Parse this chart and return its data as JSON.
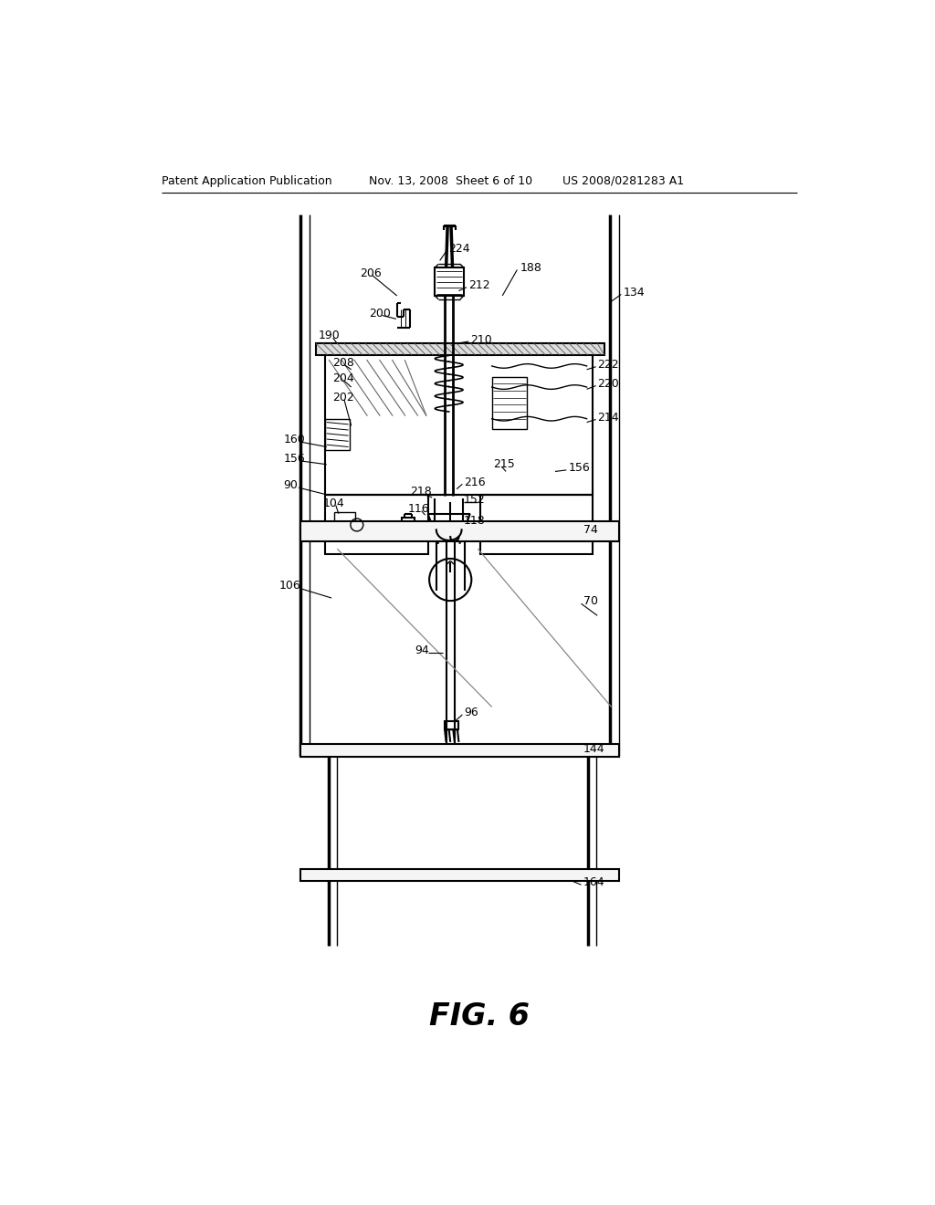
{
  "bg_color": "#ffffff",
  "header_left": "Patent Application Publication",
  "header_mid": "Nov. 13, 2008  Sheet 6 of 10",
  "header_right": "US 2008/0281283 A1",
  "fig_label": "FIG. 6",
  "line_color": "#000000",
  "label_color": "#000000",
  "hatch_color": "#666666"
}
